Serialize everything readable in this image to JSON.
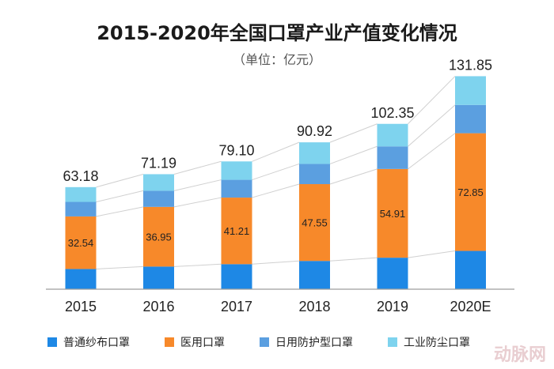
{
  "title": "2015-2020年全国口罩产业产值变化情况",
  "subtitle": "（单位：亿元）",
  "watermark": "动脉网",
  "colors": {
    "普通纱布口罩": "#1e88e5",
    "医用口罩": "#f7892a",
    "日用防护型口罩": "#5b9fe0",
    "工业防尘口罩": "#7ed3ee",
    "connector": "#d0d0d0",
    "axis": "#9e9e9e"
  },
  "chart_data": {
    "type": "bar",
    "stacked": true,
    "categories": [
      "2015",
      "2016",
      "2017",
      "2018",
      "2019",
      "2020E"
    ],
    "totals": [
      63.18,
      71.19,
      79.1,
      90.92,
      102.35,
      131.85
    ],
    "total_labels": [
      "63.18",
      "71.19",
      "79.10",
      "90.92",
      "102.35",
      "131.85"
    ],
    "series": [
      {
        "name": "普通纱布口罩",
        "values": [
          12.5,
          14.0,
          15.5,
          17.5,
          19.5,
          23.7
        ]
      },
      {
        "name": "医用口罩",
        "values": [
          32.54,
          36.95,
          41.21,
          47.55,
          54.91,
          72.85
        ],
        "labels": [
          "32.54",
          "36.95",
          "41.21",
          "47.55",
          "54.91",
          "72.85"
        ]
      },
      {
        "name": "日用防护型口罩",
        "values": [
          9.0,
          10.0,
          11.0,
          12.5,
          14.0,
          17.5
        ]
      },
      {
        "name": "工业防尘口罩",
        "values": [
          9.14,
          10.24,
          11.39,
          13.37,
          13.94,
          17.8
        ]
      }
    ],
    "ylim": [
      0,
      135
    ],
    "connector_lines": true,
    "grid": false,
    "legend_position": "bottom"
  }
}
